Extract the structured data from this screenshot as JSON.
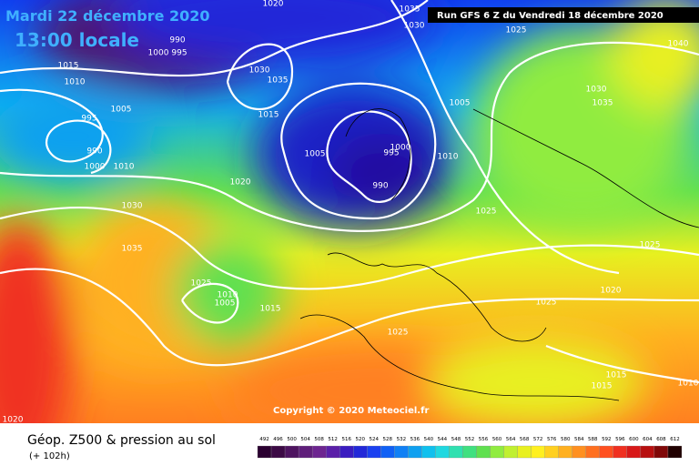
{
  "header": {
    "date": "Mardi 22 décembre 2020",
    "time": "13:00 locale",
    "run": "Run GFS 6 Z du Vendredi 18 décembre 2020",
    "copyright": "Copyright © 2020 Meteociel.fr",
    "title": "Géop. Z500 & pression au sol",
    "lead": "(+ 102h)"
  },
  "isobar_labels": [
    "1020",
    "1035",
    "1030",
    "990",
    "1000",
    "995",
    "1015",
    "1010",
    "1030",
    "1035",
    "1005",
    "995",
    "1015",
    "990",
    "1000",
    "1010",
    "1020",
    "1005",
    "995",
    "1000",
    "990",
    "1010",
    "1005",
    "1025",
    "1040",
    "1030",
    "1035",
    "1030",
    "1035",
    "1025",
    "1025",
    "1025",
    "1010",
    "1005",
    "1015",
    "1020",
    "1025",
    "1025",
    "1015",
    "1015",
    "1010",
    "1020"
  ],
  "colorbar": {
    "labels": [
      492,
      496,
      500,
      504,
      508,
      512,
      516,
      520,
      524,
      528,
      532,
      536,
      540,
      544,
      548,
      552,
      556,
      560,
      564,
      568,
      572,
      576,
      580,
      584,
      588,
      592,
      596,
      600,
      604,
      608,
      612
    ],
    "colors": [
      "#2a0030",
      "#3c0a45",
      "#4e1460",
      "#5f1e7a",
      "#6d2590",
      "#5a1fa8",
      "#3a1cc0",
      "#2228d8",
      "#1a40f0",
      "#1060f5",
      "#1080f5",
      "#10a0f0",
      "#10c0ee",
      "#20d8e0",
      "#30e0b0",
      "#40e080",
      "#60e050",
      "#90ec40",
      "#c0f030",
      "#e8f020",
      "#fff020",
      "#ffd020",
      "#ffb020",
      "#ff9020",
      "#ff7020",
      "#ff5020",
      "#f03020",
      "#d81818",
      "#b81010",
      "#800808",
      "#200000"
    ]
  }
}
